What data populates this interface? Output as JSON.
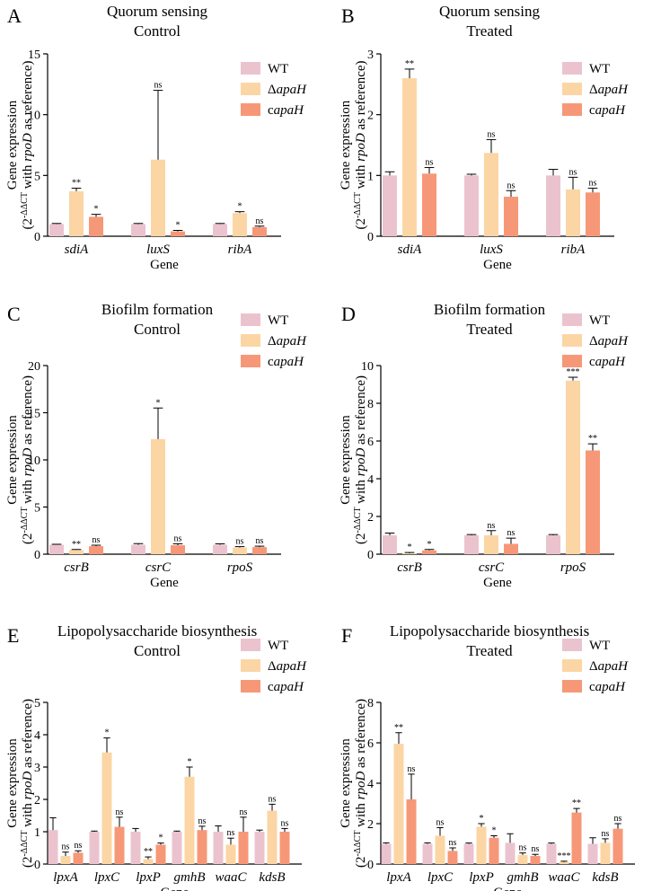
{
  "colors": {
    "WT": "#EBC3CF",
    "dapaH": "#FCD5A5",
    "capaH": "#F69878"
  },
  "legend": {
    "items": [
      {
        "key": "WT",
        "label": "WT"
      },
      {
        "key": "dapaH",
        "prefix": "Δ",
        "label": "apaH"
      },
      {
        "key": "capaH",
        "prefix": "c",
        "label": "apaH"
      }
    ]
  },
  "common": {
    "xlabel": "Gene",
    "ylabel_line1": "Gene expression",
    "ylabel_pre": "(2",
    "ylabel_sup": "-ΔΔCT",
    "ylabel_mid": " with ",
    "ylabel_italic": "rpoD",
    "ylabel_post": " as reference)"
  },
  "chart_data": [
    {
      "letter": "A",
      "type": "bar",
      "title": [
        "Quorum sensing",
        "Control"
      ],
      "categories": [
        "sdiA",
        "luxS",
        "ribA"
      ],
      "ylim": [
        0,
        15
      ],
      "yticks": [
        0,
        5,
        10,
        15
      ],
      "series": [
        {
          "name": "WT",
          "values": [
            1.0,
            1.0,
            1.0
          ],
          "errors": [
            0.05,
            0.05,
            0.05
          ],
          "sig": [
            "",
            "",
            ""
          ]
        },
        {
          "name": "ΔapaH",
          "values": [
            3.7,
            6.3,
            1.9
          ],
          "errors": [
            0.25,
            5.7,
            0.12
          ],
          "sig": [
            "**",
            "ns",
            "*"
          ]
        },
        {
          "name": "capaH",
          "values": [
            1.6,
            0.4,
            0.75
          ],
          "errors": [
            0.2,
            0.08,
            0.08
          ],
          "sig": [
            "*",
            "*",
            "ns"
          ]
        }
      ]
    },
    {
      "letter": "B",
      "type": "bar",
      "title": [
        "Quorum sensing",
        "Treated"
      ],
      "categories": [
        "sdiA",
        "luxS",
        "ribA"
      ],
      "ylim": [
        0,
        3
      ],
      "yticks": [
        0,
        1,
        2,
        3
      ],
      "series": [
        {
          "name": "WT",
          "values": [
            1.0,
            1.0,
            1.0
          ],
          "errors": [
            0.06,
            0.02,
            0.1
          ],
          "sig": [
            "",
            "",
            ""
          ]
        },
        {
          "name": "ΔapaH",
          "values": [
            2.6,
            1.37,
            0.77
          ],
          "errors": [
            0.15,
            0.22,
            0.2
          ],
          "sig": [
            "**",
            "ns",
            "ns"
          ]
        },
        {
          "name": "capaH",
          "values": [
            1.03,
            0.65,
            0.72
          ],
          "errors": [
            0.1,
            0.1,
            0.07
          ],
          "sig": [
            "ns",
            "ns",
            "ns"
          ]
        }
      ]
    },
    {
      "letter": "C",
      "type": "bar",
      "title": [
        "Biofilm formation",
        "Control"
      ],
      "categories": [
        "csrB",
        "csrC",
        "rpoS"
      ],
      "ylim": [
        0,
        20
      ],
      "yticks": [
        0,
        5,
        10,
        15,
        20
      ],
      "series": [
        {
          "name": "WT",
          "values": [
            1.0,
            1.0,
            1.0
          ],
          "errors": [
            0.05,
            0.12,
            0.1
          ],
          "sig": [
            "",
            "",
            ""
          ]
        },
        {
          "name": "ΔapaH",
          "values": [
            0.45,
            12.2,
            0.7
          ],
          "errors": [
            0.05,
            3.3,
            0.1
          ],
          "sig": [
            "**",
            "*",
            "ns"
          ]
        },
        {
          "name": "capaH",
          "values": [
            0.85,
            0.95,
            0.75
          ],
          "errors": [
            0.1,
            0.15,
            0.1
          ],
          "sig": [
            "ns",
            "ns",
            "ns"
          ]
        }
      ]
    },
    {
      "letter": "D",
      "type": "bar",
      "title": [
        "Biofilm formation",
        "Treated"
      ],
      "categories": [
        "csrB",
        "csrC",
        "rpoS"
      ],
      "ylim": [
        0,
        10
      ],
      "yticks": [
        0,
        2,
        4,
        6,
        8,
        10
      ],
      "series": [
        {
          "name": "WT",
          "values": [
            1.0,
            1.0,
            1.0
          ],
          "errors": [
            0.12,
            0.04,
            0.04
          ],
          "sig": [
            "",
            "",
            ""
          ]
        },
        {
          "name": "ΔapaH",
          "values": [
            0.05,
            1.0,
            9.2
          ],
          "errors": [
            0.04,
            0.25,
            0.18
          ],
          "sig": [
            "*",
            "ns",
            "***"
          ]
        },
        {
          "name": "capaH",
          "values": [
            0.2,
            0.55,
            5.5
          ],
          "errors": [
            0.05,
            0.3,
            0.35
          ],
          "sig": [
            "*",
            "ns",
            "**"
          ]
        }
      ]
    },
    {
      "letter": "E",
      "type": "bar",
      "title": [
        "Lipopolysaccharide biosynthesis",
        "Control"
      ],
      "categories": [
        "lpxA",
        "lpxC",
        "lpxP",
        "gmhB",
        "waaC",
        "kdsB"
      ],
      "ylim": [
        0,
        5
      ],
      "yticks": [
        0,
        1,
        2,
        3,
        4,
        5
      ],
      "series": [
        {
          "name": "WT",
          "values": [
            1.05,
            1.0,
            1.0,
            1.0,
            1.0,
            1.0
          ],
          "errors": [
            0.38,
            0.02,
            0.1,
            0.02,
            0.18,
            0.05
          ],
          "sig": [
            "",
            "",
            "",
            "",
            "",
            ""
          ]
        },
        {
          "name": "ΔapaH",
          "values": [
            0.25,
            3.45,
            0.15,
            2.7,
            0.6,
            1.65
          ],
          "errors": [
            0.12,
            0.45,
            0.07,
            0.3,
            0.2,
            0.2
          ],
          "sig": [
            "ns",
            "*",
            "**",
            "*",
            "ns",
            "ns"
          ]
        },
        {
          "name": "capaH",
          "values": [
            0.35,
            1.15,
            0.6,
            1.05,
            1.0,
            1.0
          ],
          "errors": [
            0.06,
            0.3,
            0.05,
            0.12,
            0.45,
            0.1
          ],
          "sig": [
            "ns",
            "ns",
            "*",
            "ns",
            "ns",
            "ns"
          ]
        }
      ]
    },
    {
      "letter": "F",
      "type": "bar",
      "title": [
        "Lipopolysaccharide biosynthesis",
        "Treated"
      ],
      "categories": [
        "lpxA",
        "lpxC",
        "lpxP",
        "gmhB",
        "waaC",
        "kdsB"
      ],
      "ylim": [
        0,
        8
      ],
      "yticks": [
        0,
        2,
        4,
        6,
        8
      ],
      "series": [
        {
          "name": "WT",
          "values": [
            1.0,
            1.0,
            1.0,
            1.05,
            1.0,
            1.0
          ],
          "errors": [
            0.05,
            0.05,
            0.04,
            0.45,
            0.04,
            0.3
          ],
          "sig": [
            "",
            "",
            "",
            "",
            "",
            ""
          ]
        },
        {
          "name": "ΔapaH",
          "values": [
            5.95,
            1.4,
            1.85,
            0.45,
            0.1,
            1.05
          ],
          "errors": [
            0.55,
            0.4,
            0.15,
            0.1,
            0.04,
            0.2
          ],
          "sig": [
            "**",
            "ns",
            "*",
            "ns",
            "***",
            "ns"
          ]
        },
        {
          "name": "capaH",
          "values": [
            3.2,
            0.65,
            1.3,
            0.4,
            2.55,
            1.75
          ],
          "errors": [
            1.25,
            0.15,
            0.1,
            0.08,
            0.2,
            0.25
          ],
          "sig": [
            "ns",
            "ns",
            "*",
            "ns",
            "**",
            "ns"
          ]
        }
      ]
    }
  ]
}
